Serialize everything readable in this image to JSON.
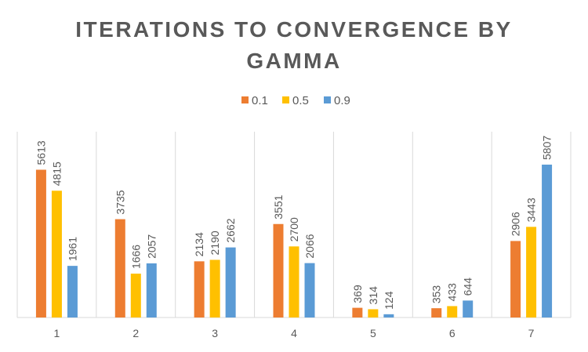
{
  "chart_data": {
    "type": "bar",
    "title_lines": [
      "ITERATIONS TO CONVERGENCE BY",
      "GAMMA"
    ],
    "xlabel": "",
    "ylabel": "",
    "categories": [
      "1",
      "2",
      "3",
      "4",
      "5",
      "6",
      "7"
    ],
    "series": [
      {
        "name": "0.1",
        "color": "#ED7D31",
        "values": [
          5613,
          3735,
          2134,
          3551,
          369,
          353,
          2906
        ]
      },
      {
        "name": "0.5",
        "color": "#FFC000",
        "values": [
          4815,
          1666,
          2190,
          2700,
          314,
          433,
          3443
        ]
      },
      {
        "name": "0.9",
        "color": "#5B9BD5",
        "values": [
          1961,
          2057,
          2662,
          2066,
          124,
          644,
          5807
        ]
      }
    ],
    "ylim": [
      0,
      7000
    ],
    "y_axis_visible": false,
    "grid": "vertical category separators",
    "legend_position": "top",
    "data_labels": true,
    "data_label_rotation": "vertical"
  }
}
